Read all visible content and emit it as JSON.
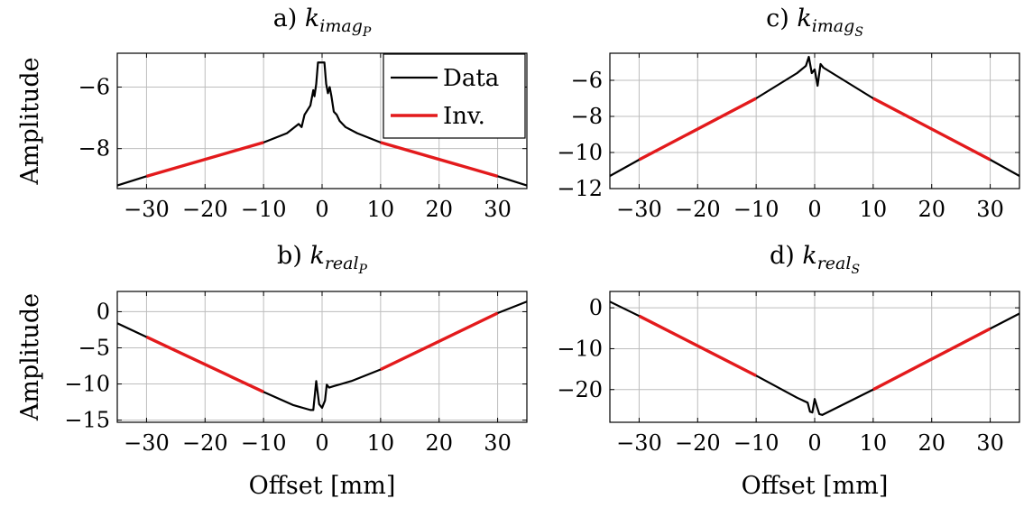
{
  "chart_data": [
    {
      "id": "a",
      "type": "line",
      "title_prefix": "a) ",
      "title_k": "k",
      "title_sub": "imag",
      "title_subsub": "P",
      "ylabel": "Amplitude",
      "xlabel": "",
      "xlim": [
        -35,
        35
      ],
      "ylim": [
        -9.3,
        -4.9
      ],
      "xticks": [
        -30,
        -20,
        -10,
        0,
        10,
        20,
        30
      ],
      "xtick_labels": [
        "−30",
        "−20",
        "−10",
        "0",
        "10",
        "20",
        "30"
      ],
      "yticks": [
        -8,
        -6
      ],
      "ytick_labels": [
        "−8",
        "−6"
      ],
      "grid": true,
      "legend": {
        "position": "top-right",
        "entries": [
          "Data",
          "Inv."
        ]
      },
      "series": [
        {
          "name": "Data",
          "color": "#000000",
          "x": [
            -35,
            -30,
            -20,
            -10,
            -6,
            -4,
            -3.5,
            -3,
            -2,
            -1.5,
            -1.3,
            -1,
            -0.7,
            -0.4,
            0.4,
            0.7,
            1,
            1.3,
            1.6,
            2,
            2.5,
            3,
            4,
            6,
            10,
            20,
            30,
            35
          ],
          "y": [
            -9.2,
            -8.9,
            -8.35,
            -7.8,
            -7.5,
            -7.2,
            -7.3,
            -6.9,
            -6.6,
            -6.1,
            -6.3,
            -5.9,
            -5.2,
            -5.2,
            -5.2,
            -5.9,
            -6.2,
            -6.0,
            -6.3,
            -6.8,
            -6.9,
            -7.1,
            -7.3,
            -7.5,
            -7.8,
            -8.35,
            -8.9,
            -9.2
          ]
        },
        {
          "name": "Inv.",
          "color": "#e31a1c",
          "segments": [
            {
              "x": [
                -30,
                -10
              ],
              "y": [
                -8.9,
                -7.8
              ]
            },
            {
              "x": [
                10,
                30
              ],
              "y": [
                -7.8,
                -8.9
              ]
            }
          ]
        }
      ]
    },
    {
      "id": "c",
      "type": "line",
      "title_prefix": "c) ",
      "title_k": "k",
      "title_sub": "imag",
      "title_subsub": "S",
      "ylabel": "",
      "xlabel": "",
      "xlim": [
        -35,
        35
      ],
      "ylim": [
        -12,
        -4.5
      ],
      "xticks": [
        -30,
        -20,
        -10,
        0,
        10,
        20,
        30
      ],
      "xtick_labels": [
        "−30",
        "−20",
        "−10",
        "0",
        "10",
        "20",
        "30"
      ],
      "yticks": [
        -12,
        -10,
        -8,
        -6
      ],
      "ytick_labels": [
        "−12",
        "−10",
        "−8",
        "−6"
      ],
      "grid": true,
      "series": [
        {
          "name": "Data",
          "color": "#000000",
          "x": [
            -35,
            -30,
            -20,
            -10,
            -3,
            -1.5,
            -1,
            -0.5,
            0,
            0.5,
            1,
            1.5,
            3,
            10,
            20,
            30,
            35
          ],
          "y": [
            -11.3,
            -10.4,
            -8.7,
            -7.0,
            -5.6,
            -5.2,
            -4.7,
            -5.6,
            -5.4,
            -6.3,
            -5.1,
            -5.3,
            -5.6,
            -7.0,
            -8.7,
            -10.4,
            -11.3
          ]
        },
        {
          "name": "Inv.",
          "color": "#e31a1c",
          "segments": [
            {
              "x": [
                -30,
                -10
              ],
              "y": [
                -10.4,
                -7.0
              ]
            },
            {
              "x": [
                10,
                30
              ],
              "y": [
                -7.0,
                -10.4
              ]
            }
          ]
        }
      ]
    },
    {
      "id": "b",
      "type": "line",
      "title_prefix": "b) ",
      "title_k": "k",
      "title_sub": "real",
      "title_subsub": "P",
      "ylabel": "Amplitude",
      "xlabel": "Offset [mm]",
      "xlim": [
        -35,
        35
      ],
      "ylim": [
        -15.3,
        2.8
      ],
      "xticks": [
        -30,
        -20,
        -10,
        0,
        10,
        20,
        30
      ],
      "xtick_labels": [
        "−30",
        "−20",
        "−10",
        "0",
        "10",
        "20",
        "30"
      ],
      "yticks": [
        -15,
        -10,
        -5,
        0
      ],
      "ytick_labels": [
        "−15",
        "−10",
        "−5",
        "0"
      ],
      "grid": true,
      "series": [
        {
          "name": "Data",
          "color": "#000000",
          "x": [
            -35,
            -30,
            -20,
            -10,
            -5,
            -2,
            -1.5,
            -1,
            -0.5,
            0,
            0.5,
            0.8,
            1.2,
            2,
            5,
            10,
            20,
            30,
            35
          ],
          "y": [
            -1.6,
            -3.5,
            -7.3,
            -11.1,
            -12.9,
            -13.6,
            -13.6,
            -9.6,
            -12.8,
            -13.3,
            -12.3,
            -10.1,
            -10.5,
            -10.3,
            -9.6,
            -8.0,
            -4.1,
            -0.2,
            1.4
          ]
        },
        {
          "name": "Inv.",
          "color": "#e31a1c",
          "segments": [
            {
              "x": [
                -30,
                -10
              ],
              "y": [
                -3.5,
                -11.1
              ]
            },
            {
              "x": [
                10,
                30
              ],
              "y": [
                -8.0,
                -0.2
              ]
            }
          ]
        }
      ]
    },
    {
      "id": "d",
      "type": "line",
      "title_prefix": "d) ",
      "title_k": "k",
      "title_sub": "real",
      "title_subsub": "S",
      "ylabel": "",
      "xlabel": "Offset [mm]",
      "xlim": [
        -35,
        35
      ],
      "ylim": [
        -28,
        4
      ],
      "xticks": [
        -30,
        -20,
        -10,
        0,
        10,
        20,
        30
      ],
      "xtick_labels": [
        "−30",
        "−20",
        "−10",
        "0",
        "10",
        "20",
        "30"
      ],
      "yticks": [
        -20,
        -10,
        0
      ],
      "ytick_labels": [
        "−20",
        "−10",
        "0"
      ],
      "grid": true,
      "series": [
        {
          "name": "Data",
          "color": "#000000",
          "x": [
            -35,
            -30,
            -20,
            -10,
            -3,
            -1.2,
            -0.8,
            -0.4,
            0,
            0.4,
            0.8,
            1.3,
            3,
            10,
            20,
            30,
            35
          ],
          "y": [
            1.5,
            -2.0,
            -9.3,
            -16.6,
            -22.0,
            -23.2,
            -25.4,
            -25.6,
            -22.3,
            -24.2,
            -26.0,
            -26.2,
            -25.0,
            -20.0,
            -12.6,
            -5.1,
            -1.4
          ]
        },
        {
          "name": "Inv.",
          "color": "#e31a1c",
          "segments": [
            {
              "x": [
                -30,
                -10
              ],
              "y": [
                -2.0,
                -16.6
              ]
            },
            {
              "x": [
                10,
                30
              ],
              "y": [
                -20.0,
                -5.1
              ]
            }
          ]
        }
      ]
    }
  ]
}
